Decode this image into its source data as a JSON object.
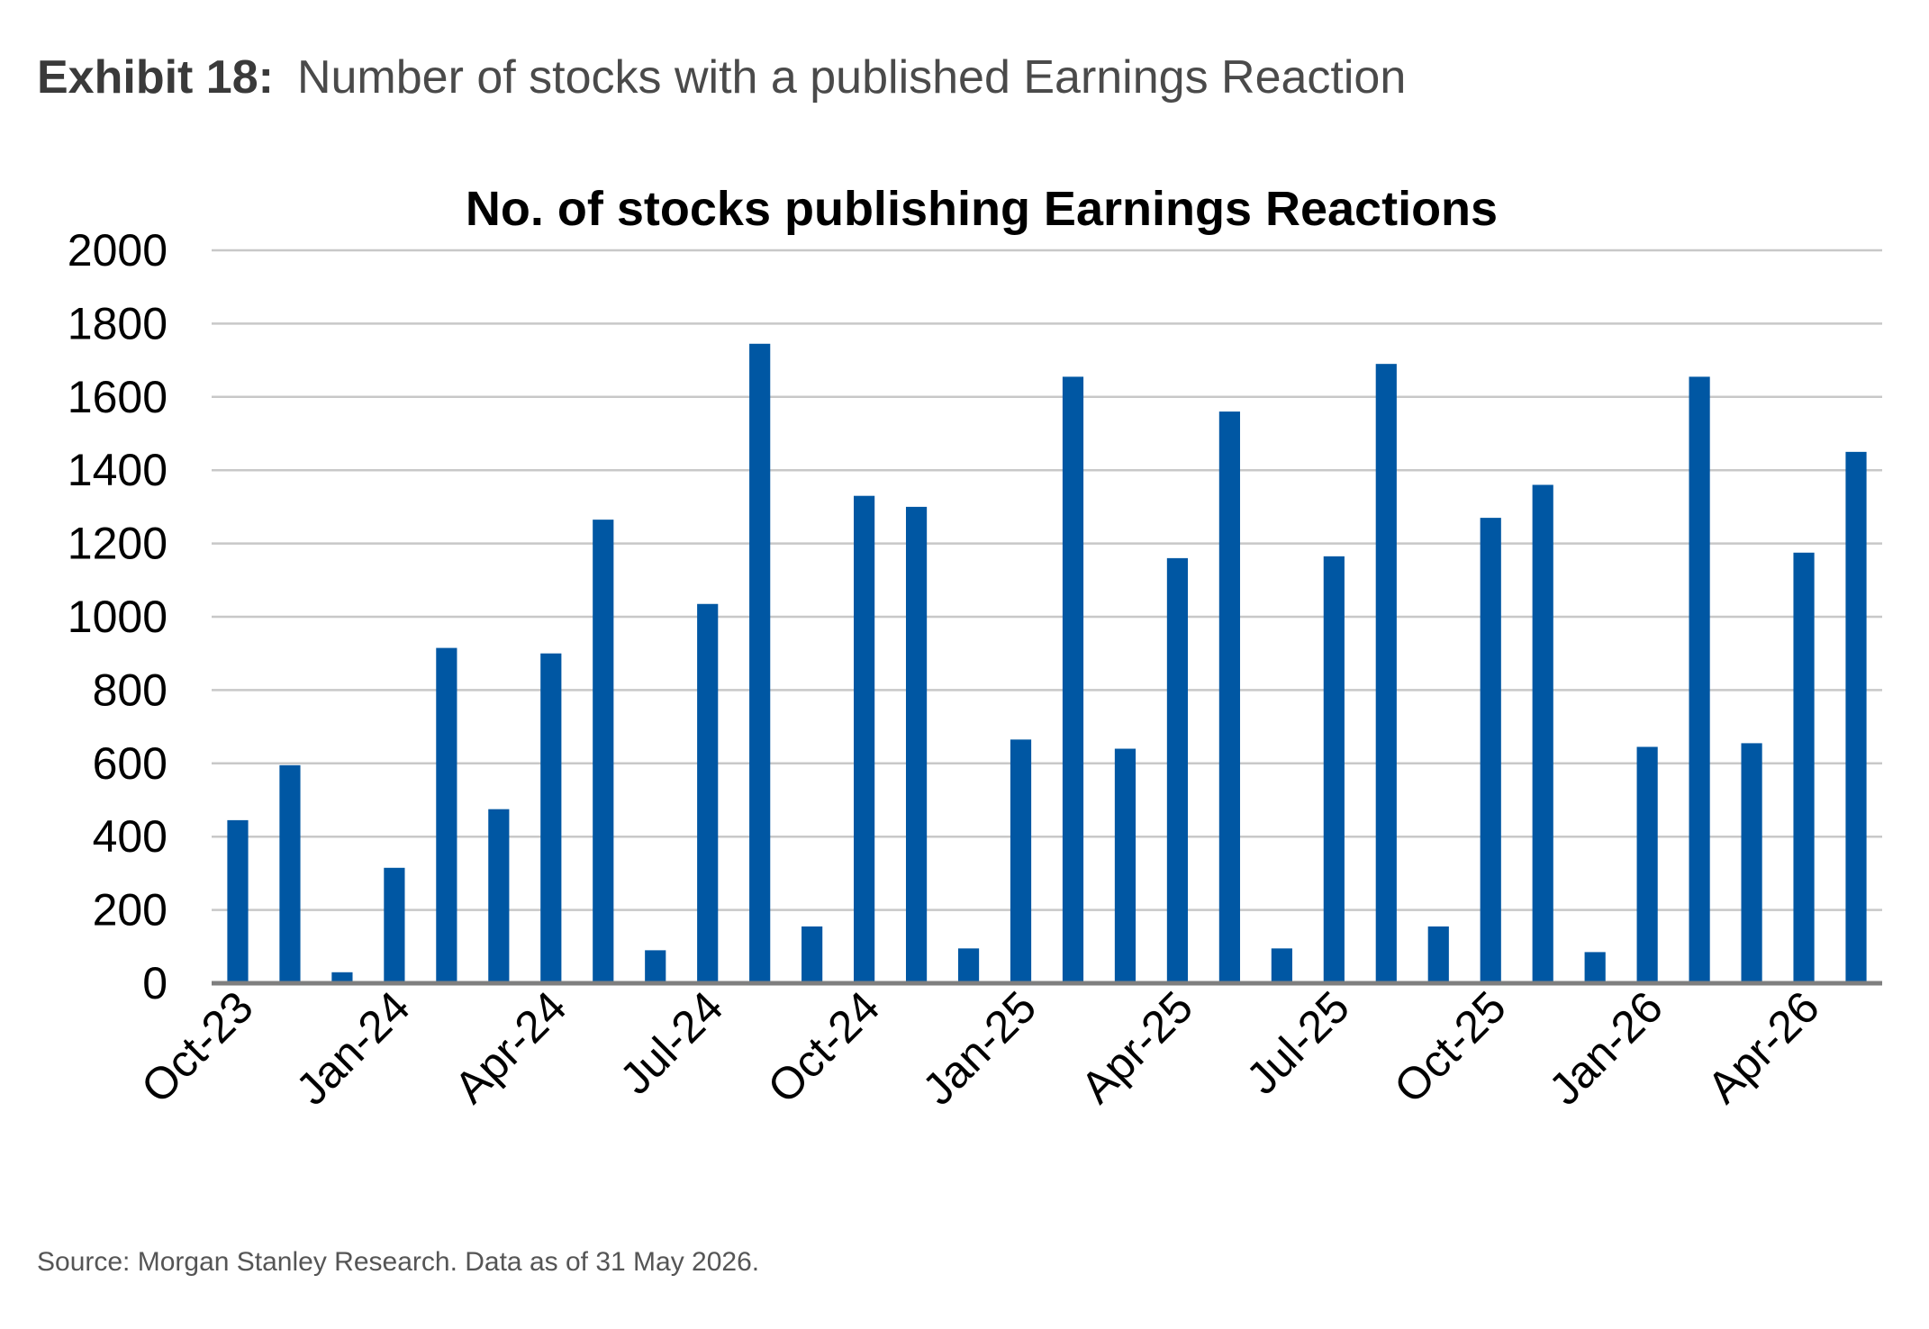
{
  "header": {
    "exhibit_label": "Exhibit 18:",
    "exhibit_title": "Number of stocks with a published Earnings Reaction"
  },
  "source": "Source: Morgan Stanley Research. Data as of 31 May 2026.",
  "colors": {
    "bar": "#0057a3",
    "grid": "#c8c8c8",
    "axis": "#7f7f7f",
    "text": "#000000"
  },
  "chart_data": {
    "type": "bar",
    "title": "No. of stocks publishing Earnings Reactions",
    "xlabel": "",
    "ylabel": "",
    "ylim": [
      0,
      2000
    ],
    "yticks": [
      0,
      200,
      400,
      600,
      800,
      1000,
      1200,
      1400,
      1600,
      1800,
      2000
    ],
    "grid": true,
    "legend": "none",
    "categories": [
      "Oct-23",
      "Nov-23",
      "Dec-23",
      "Jan-24",
      "Feb-24",
      "Mar-24",
      "Apr-24",
      "May-24",
      "Jun-24",
      "Jul-24",
      "Aug-24",
      "Sep-24",
      "Oct-24",
      "Nov-24",
      "Dec-24",
      "Jan-25",
      "Feb-25",
      "Mar-25",
      "Apr-25",
      "May-25",
      "Jun-25",
      "Jul-25",
      "Aug-25",
      "Sep-25",
      "Oct-25",
      "Nov-25",
      "Dec-25",
      "Jan-26",
      "Feb-26",
      "Mar-26",
      "Apr-26",
      "May-26"
    ],
    "tick_labels": [
      "Oct-23",
      "Jan-24",
      "Apr-24",
      "Jul-24",
      "Oct-24",
      "Jan-25",
      "Apr-25",
      "Jul-25",
      "Oct-25",
      "Jan-26",
      "Apr-26"
    ],
    "values": [
      445,
      595,
      30,
      315,
      915,
      475,
      900,
      1265,
      90,
      1035,
      1745,
      155,
      1330,
      1300,
      95,
      665,
      1655,
      640,
      1160,
      1560,
      95,
      1165,
      1690,
      155,
      1270,
      1360,
      85,
      645,
      1655,
      655,
      1175,
      1450
    ]
  }
}
